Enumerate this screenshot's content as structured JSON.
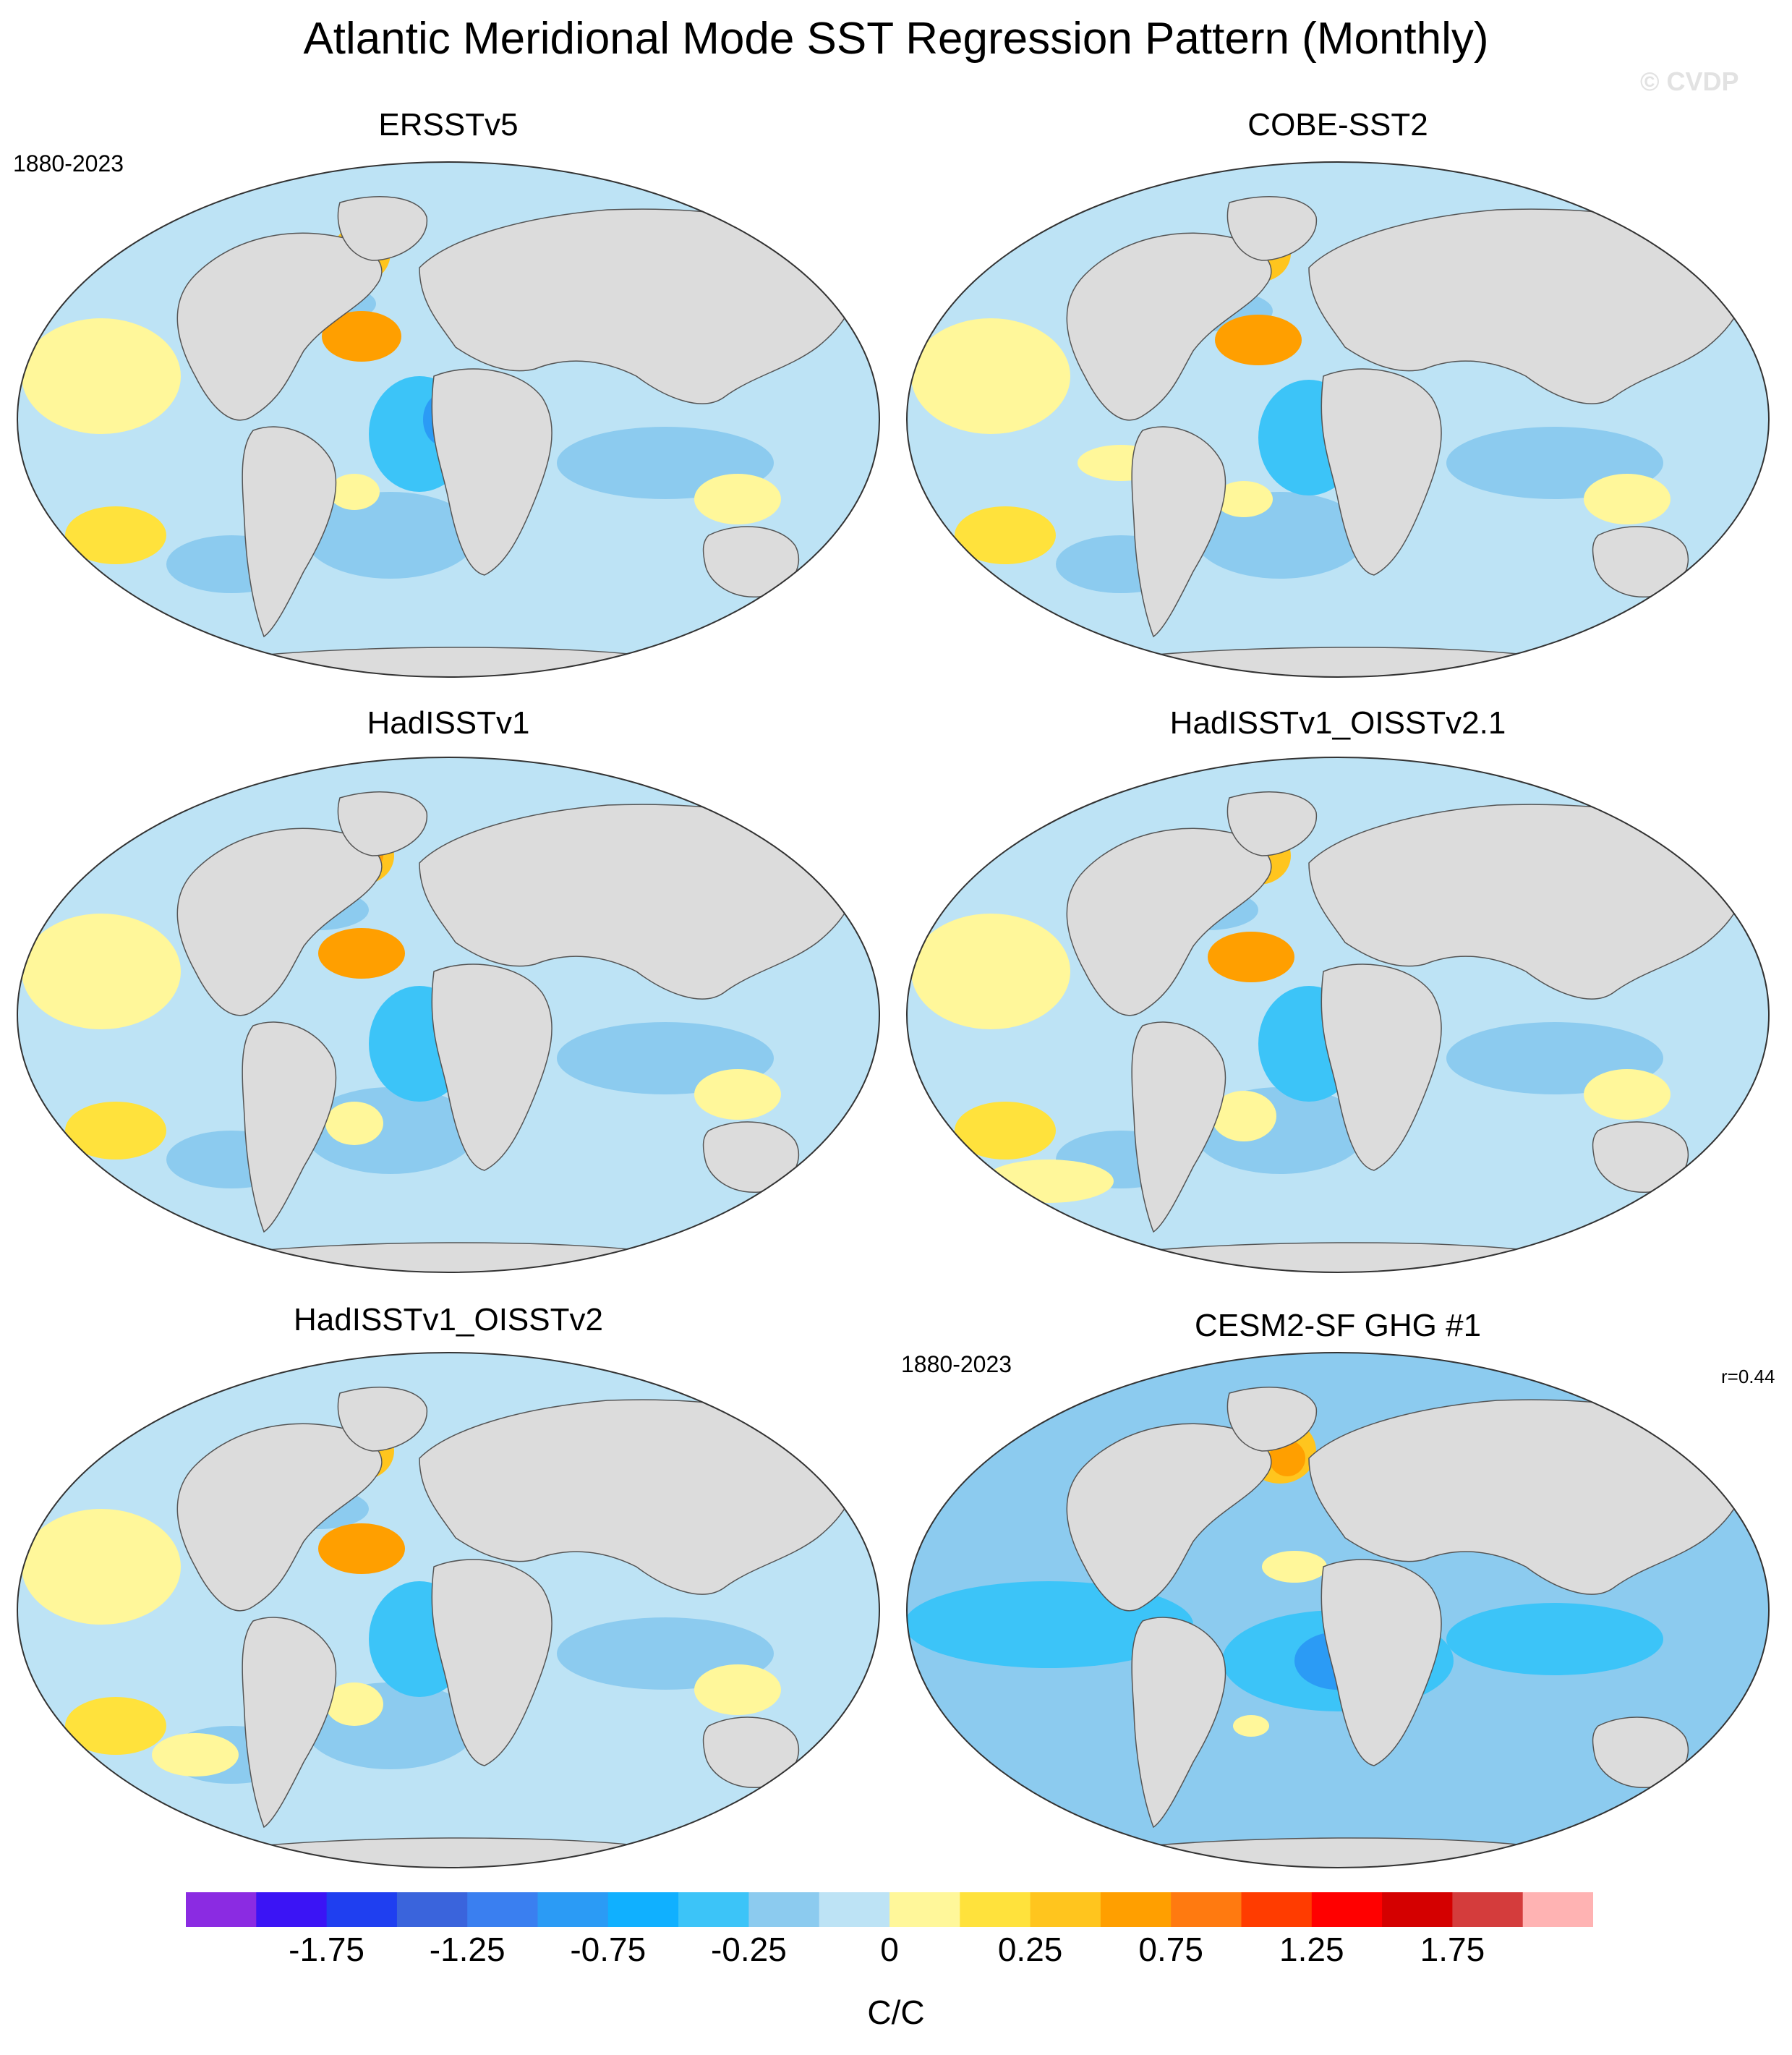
{
  "title": "Atlantic Meridional Mode SST Regression Pattern (Monthly)",
  "watermark": "© CVDP",
  "panels": [
    {
      "name": "ERSSTv5",
      "period": "1880-2023",
      "corr": ""
    },
    {
      "name": "COBE-SST2",
      "period": "",
      "corr": ""
    },
    {
      "name": "HadISSTv1",
      "period": "",
      "corr": ""
    },
    {
      "name": "HadISSTv1_OISSTv2.1",
      "period": "",
      "corr": ""
    },
    {
      "name": "HadISSTv1_OISSTv2",
      "period": "",
      "corr": ""
    },
    {
      "name": "CESM2-SF GHG #1",
      "period": "1880-2023",
      "corr": "r=0.44"
    }
  ],
  "colorbar": {
    "unit": "C/C",
    "tick_labels": [
      "-1.75",
      "-1.25",
      "-0.75",
      "-0.25",
      "0",
      "0.25",
      "0.75",
      "1.25",
      "1.75"
    ],
    "colors": [
      "#8b2be2",
      "#3b14f5",
      "#1f3ff0",
      "#3a64dc",
      "#3a7ff0",
      "#2b9bf5",
      "#10b0ff",
      "#3cc4f8",
      "#8ccbef",
      "#bde3f5",
      "#fff79a",
      "#ffe23c",
      "#ffc51e",
      "#ff9f00",
      "#ff7a10",
      "#ff3c00",
      "#ff0000",
      "#d40000",
      "#d43c3c",
      "#ffb3b3"
    ]
  },
  "map_colors": {
    "land": "#dcdcdc",
    "ocean_base": "#bde3f5",
    "cool_light": "#8ccbef",
    "cool_mid": "#3cc4f8",
    "cool_strong": "#2b9bf5",
    "warm_light": "#fff79a",
    "warm_mid": "#ffe23c",
    "warm_strong": "#ffc51e",
    "warm_peak": "#ff9f00"
  }
}
